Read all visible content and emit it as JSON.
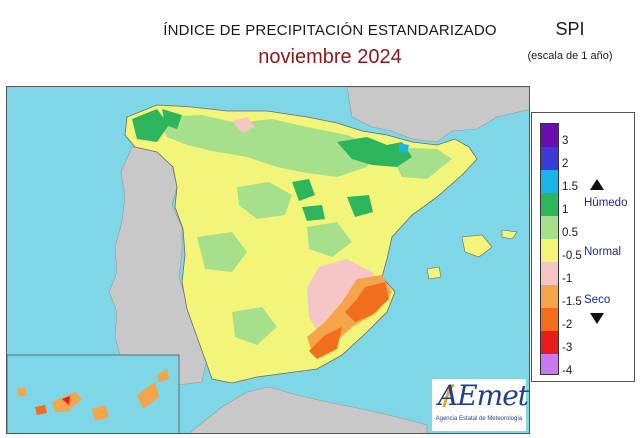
{
  "title": "ÍNDICE DE PRECIPITACIÓN ESTANDARIZADO",
  "subtitle": "noviembre  2024",
  "index_name": "SPI",
  "scale_note": "(escala de 1 año)",
  "legend": {
    "classes": [
      {
        "color": "#6a0dad"
      },
      {
        "color": "#3a3ad6"
      },
      {
        "color": "#19b5e8"
      },
      {
        "color": "#2db55d"
      },
      {
        "color": "#a7e08a"
      },
      {
        "color": "#f2f57a"
      },
      {
        "color": "#f6c6c6"
      },
      {
        "color": "#f5a44a"
      },
      {
        "color": "#f26d1c"
      },
      {
        "color": "#e81c1c"
      },
      {
        "color": "#c77af0"
      }
    ],
    "ticks": [
      "3",
      "2",
      "1.5",
      "1",
      "0.5",
      "-0.5",
      "-1",
      "-1.5",
      "-2",
      "-3",
      "-4"
    ],
    "labels": {
      "wet": "Húmedo",
      "normal": "Normal",
      "dry": "Seco"
    }
  },
  "colors": {
    "sea": "#7fd6e6",
    "foreign_land": "#c8c8c8",
    "title_accent": "#8b1a1a",
    "label_blue": "#1f2a8a"
  },
  "logo": {
    "text": "AEmet",
    "subtext": "Agencia Estatal de Meteorología"
  }
}
